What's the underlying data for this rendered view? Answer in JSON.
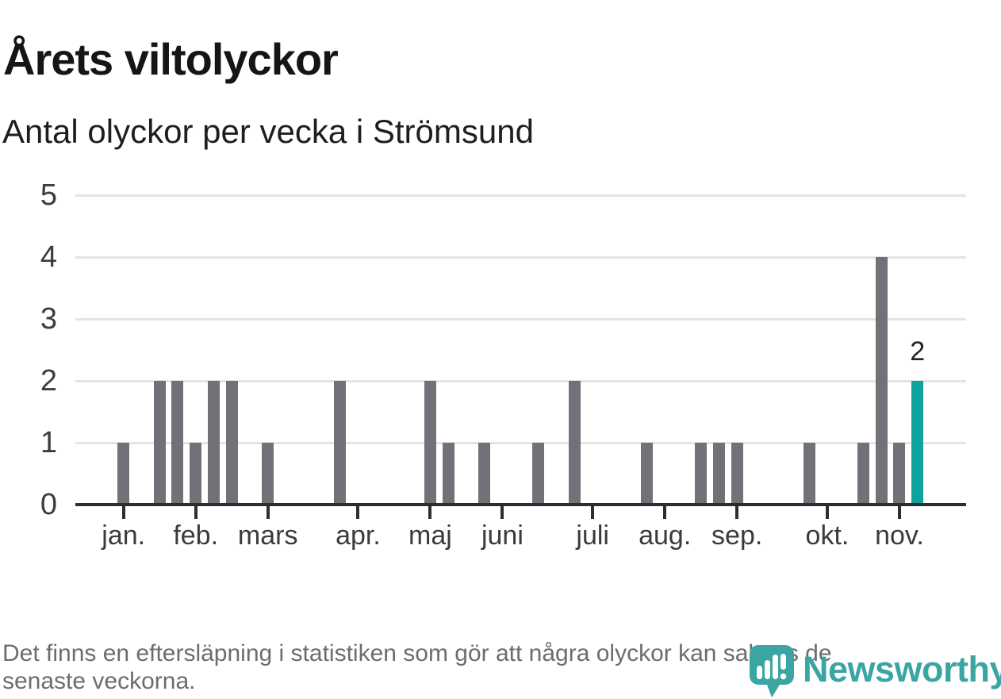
{
  "footer": {
    "lines": [
      "Det finns en eftersläpning i statistiken som gör att några olyckor kan saknas de",
      "senaste veckorna."
    ]
  },
  "branding": {
    "name": "Newsworthy",
    "logo_icon": "newsworthy-pin-barchart-icon"
  },
  "colors": {
    "bar": "#747077",
    "highlight": "#0fa39e",
    "brand": "#3aa5a2",
    "axis": "#2e2e2e",
    "gridline": "#e4e4e4"
  },
  "chart_data": {
    "type": "bar",
    "title": "Årets viltolyckor",
    "subtitle": "Antal olyckor per vecka i Strömsund",
    "xlabel": "",
    "ylabel": "",
    "x_unit": "vecka",
    "ylim": [
      0,
      5
    ],
    "yticks": [
      0,
      1,
      2,
      3,
      4,
      5
    ],
    "grid": "horizontal",
    "weeks": 45,
    "values": [
      1,
      0,
      2,
      2,
      1,
      2,
      2,
      0,
      1,
      0,
      0,
      0,
      2,
      0,
      0,
      0,
      0,
      2,
      1,
      0,
      1,
      0,
      0,
      1,
      0,
      2,
      0,
      0,
      0,
      1,
      0,
      0,
      1,
      1,
      1,
      0,
      0,
      0,
      1,
      0,
      0,
      1,
      4,
      1,
      2
    ],
    "highlight_index": 44,
    "annotation": {
      "text": "2",
      "week": 45
    },
    "month_ticks": [
      {
        "label": "jan.",
        "week": 1
      },
      {
        "label": "feb.",
        "week": 5
      },
      {
        "label": "mars",
        "week": 9
      },
      {
        "label": "apr.",
        "week": 14
      },
      {
        "label": "maj",
        "week": 18
      },
      {
        "label": "juni",
        "week": 22
      },
      {
        "label": "juli",
        "week": 27
      },
      {
        "label": "aug.",
        "week": 31
      },
      {
        "label": "sep.",
        "week": 35
      },
      {
        "label": "okt.",
        "week": 40
      },
      {
        "label": "nov.",
        "week": 44
      }
    ],
    "legend": null
  }
}
